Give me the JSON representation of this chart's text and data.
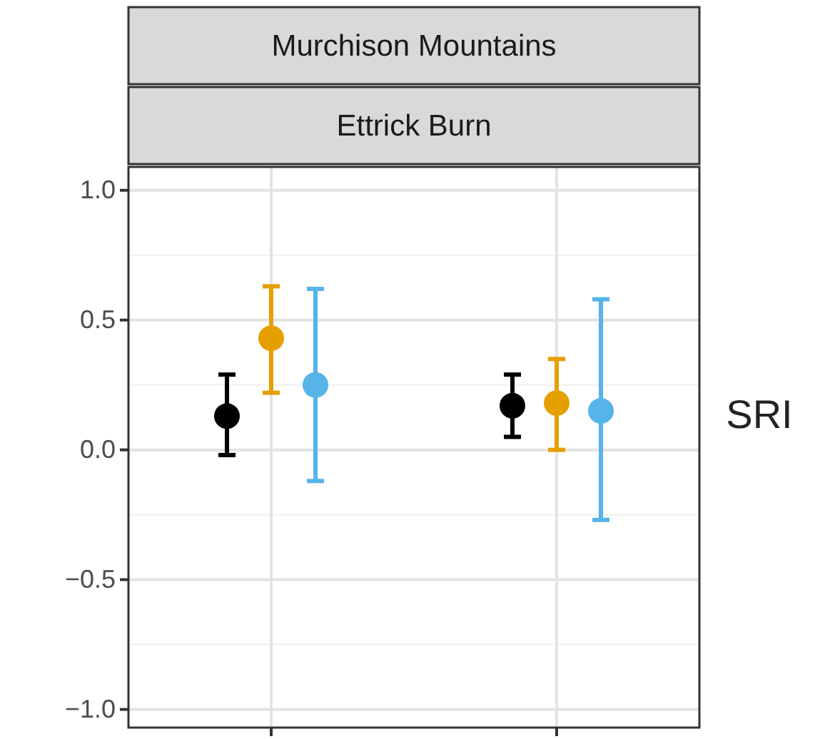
{
  "chart_data": {
    "type": "scatter",
    "title": "Murchison Mountains",
    "subtitle": "Ettrick Burn",
    "annotations": [
      "SRI"
    ],
    "categories": [
      null,
      null
    ],
    "series": [
      {
        "color": "#000000",
        "values": [
          0.13,
          0.17
        ],
        "errors": [
          [
            -0.02,
            0.29
          ],
          [
            0.05,
            0.29
          ]
        ]
      },
      {
        "color": "#e69f00",
        "values": [
          0.43,
          0.18
        ],
        "errors": [
          [
            0.22,
            0.63
          ],
          [
            0.0,
            0.35
          ]
        ]
      },
      {
        "color": "#56b4e9",
        "values": [
          0.25,
          0.15
        ],
        "errors": [
          [
            -0.12,
            0.62
          ],
          [
            -0.27,
            0.58
          ]
        ]
      }
    ],
    "ylim": [
      -1.07,
      1.09
    ],
    "yticks": [
      {
        "value": -1,
        "label": "−1.0"
      },
      {
        "value": -0.5,
        "label": "−0.5"
      },
      {
        "value": 0,
        "label": "0.0"
      },
      {
        "value": 0.5,
        "label": "0.5"
      },
      {
        "value": 1,
        "label": "1.0"
      }
    ],
    "grid": true,
    "marker": "circle"
  }
}
